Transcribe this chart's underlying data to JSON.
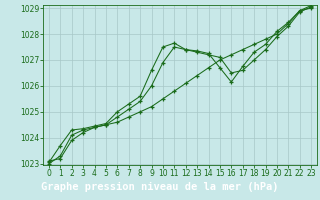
{
  "xlabel": "Graphe pression niveau de la mer (hPa)",
  "hours": [
    0,
    1,
    2,
    3,
    4,
    5,
    6,
    7,
    8,
    9,
    10,
    11,
    12,
    13,
    14,
    15,
    16,
    17,
    18,
    19,
    20,
    21,
    22,
    23
  ],
  "line1": [
    1023.1,
    1023.2,
    1023.9,
    1024.2,
    1024.4,
    1024.5,
    1024.6,
    1024.8,
    1025.0,
    1025.2,
    1025.5,
    1025.8,
    1026.1,
    1026.4,
    1026.7,
    1027.0,
    1027.2,
    1027.4,
    1027.6,
    1027.8,
    1028.0,
    1028.4,
    1028.9,
    1029.1
  ],
  "line2": [
    1023.0,
    1023.3,
    1024.1,
    1024.3,
    1024.4,
    1024.5,
    1024.8,
    1025.1,
    1025.4,
    1026.0,
    1026.9,
    1027.5,
    1027.4,
    1027.3,
    1027.2,
    1027.1,
    1026.5,
    1026.6,
    1027.0,
    1027.4,
    1027.9,
    1028.3,
    1028.85,
    1029.05
  ],
  "line3": [
    1023.05,
    1023.7,
    1024.3,
    1024.35,
    1024.45,
    1024.55,
    1025.0,
    1025.3,
    1025.6,
    1026.6,
    1027.5,
    1027.65,
    1027.4,
    1027.35,
    1027.25,
    1026.7,
    1026.15,
    1026.75,
    1027.3,
    1027.6,
    1028.1,
    1028.45,
    1028.9,
    1029.0
  ],
  "ylim_min": 1023,
  "ylim_max": 1029,
  "yticks": [
    1023,
    1024,
    1025,
    1026,
    1027,
    1028,
    1029
  ],
  "bg_color": "#c8e8e8",
  "line_color": "#1a6b1a",
  "grid_color": "#a8c8c8",
  "label_bg": "#1a6b1a",
  "label_fg": "#ffffff",
  "label_fontsize": 7.5,
  "tick_fontsize": 5.5
}
